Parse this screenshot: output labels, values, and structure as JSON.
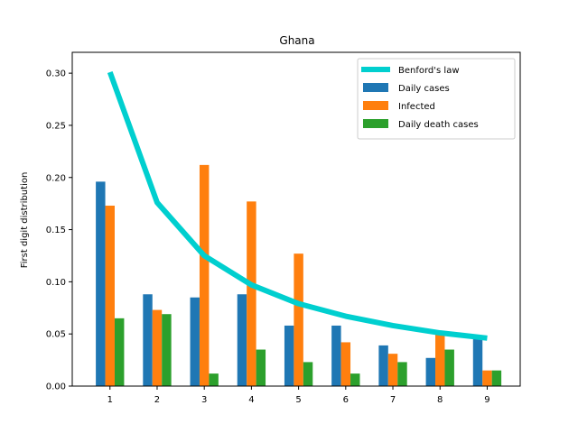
{
  "chart_data": {
    "type": "bar",
    "title": "Ghana",
    "xlabel": "",
    "ylabel": "First digit distribution",
    "categories": [
      "1",
      "2",
      "3",
      "4",
      "5",
      "6",
      "7",
      "8",
      "9"
    ],
    "x": [
      1,
      2,
      3,
      4,
      5,
      6,
      7,
      8,
      9
    ],
    "ylim": [
      0,
      0.32
    ],
    "xlim": [
      0.2,
      9.7
    ],
    "yticks": [
      0.0,
      0.05,
      0.1,
      0.15,
      0.2,
      0.25,
      0.3
    ],
    "ytick_labels": [
      "0.00",
      "0.05",
      "0.10",
      "0.15",
      "0.20",
      "0.25",
      "0.30"
    ],
    "grid": false,
    "legend_position": "top-right",
    "line": {
      "name": "Benford's law",
      "color": "#00cfcf",
      "values": [
        0.301,
        0.176,
        0.125,
        0.097,
        0.079,
        0.067,
        0.058,
        0.051,
        0.046
      ]
    },
    "series": [
      {
        "name": "Daily cases",
        "color": "#1f77b4",
        "values": [
          0.196,
          0.088,
          0.085,
          0.088,
          0.058,
          0.058,
          0.039,
          0.027,
          0.046
        ]
      },
      {
        "name": "Infected",
        "color": "#ff7f0e",
        "values": [
          0.173,
          0.073,
          0.212,
          0.177,
          0.127,
          0.042,
          0.031,
          0.05,
          0.015
        ]
      },
      {
        "name": "Daily death cases",
        "color": "#2ca02c",
        "values": [
          0.065,
          0.069,
          0.012,
          0.035,
          0.023,
          0.012,
          0.023,
          0.035,
          0.015
        ]
      }
    ]
  }
}
